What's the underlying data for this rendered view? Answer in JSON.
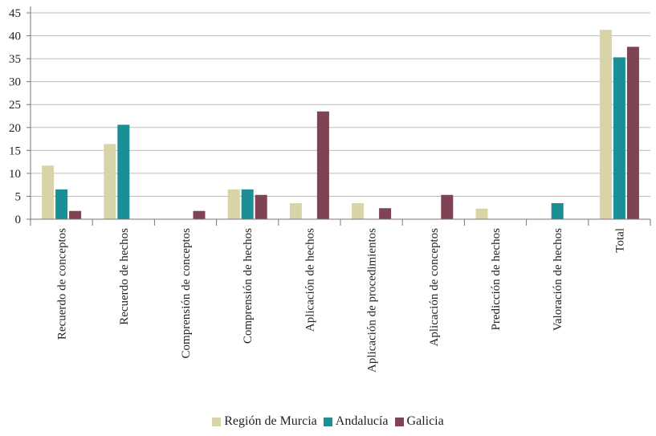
{
  "chart_data": {
    "type": "bar",
    "categories": [
      "Recuerdo de conceptos",
      "Recuerdo de hechos",
      "Comprensión de conceptos",
      "Comprensión de hechos",
      "Aplicación de hechos",
      "Aplicación de procedimientos",
      "Aplicación de conceptos",
      "Predicción de hechos",
      "Valoración de hechos",
      "Total"
    ],
    "series": [
      {
        "name": "Región de Murcia",
        "color": "#d9d4a8",
        "values": [
          11.7,
          16.4,
          0,
          6.5,
          3.5,
          3.5,
          0,
          2.3,
          0,
          41.3
        ]
      },
      {
        "name": "Andalucía",
        "color": "#1a8f96",
        "values": [
          6.5,
          20.6,
          0,
          6.5,
          0,
          0,
          0,
          0,
          3.5,
          35.3
        ]
      },
      {
        "name": "Galicia",
        "color": "#7f4353",
        "values": [
          1.8,
          0,
          1.8,
          5.3,
          23.5,
          2.4,
          5.3,
          0,
          0,
          37.6
        ]
      }
    ],
    "yticks": [
      0,
      5,
      10,
      15,
      20,
      25,
      30,
      35,
      40,
      45
    ],
    "ylim": [
      0,
      45
    ],
    "grid": true,
    "legend_position": "bottom"
  }
}
